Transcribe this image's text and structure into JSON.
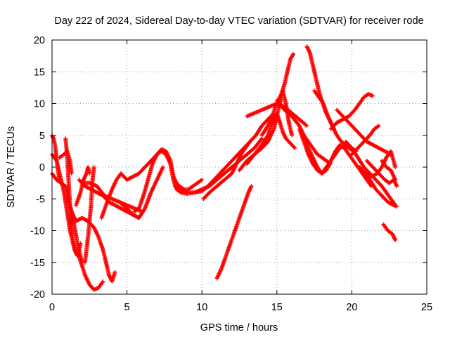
{
  "chart_data": {
    "type": "scatter",
    "title": "Day 222 of 2024, Sidereal Day-to-day VTEC variation (SDTVAR) for receiver rode",
    "xlabel": "GPS time / hours",
    "ylabel": "SDTVAR / TECUs",
    "xlim": [
      0,
      25
    ],
    "ylim": [
      -20,
      20
    ],
    "xticks": [
      0,
      5,
      10,
      15,
      20,
      25
    ],
    "yticks": [
      -20,
      -15,
      -10,
      -5,
      0,
      5,
      10,
      15,
      20
    ],
    "xtick_labels": [
      "0",
      "5",
      "10",
      "15",
      "20",
      "25"
    ],
    "ytick_labels": [
      "-20",
      "-15",
      "-10",
      "-5",
      "0",
      "5",
      "10",
      "15",
      "20"
    ],
    "grid": true,
    "legend": "none",
    "marker": "plus",
    "color": "#ff0000",
    "series": [
      {
        "x": [
          0.0,
          0.1,
          0.2,
          0.3,
          0.4,
          0.5
        ],
        "y": [
          5.0,
          4.5,
          3.5,
          1.5,
          -0.5,
          -2.0
        ]
      },
      {
        "x": [
          0.0,
          0.3,
          0.6,
          0.8,
          1.0,
          1.2,
          1.4,
          1.6,
          1.8,
          2.0,
          2.2,
          2.5,
          2.8,
          3.1,
          3.4
        ],
        "y": [
          2.0,
          1.0,
          -2.0,
          -4.0,
          -7.0,
          -10.0,
          -12.0,
          -13.5,
          -14.0,
          -15.5,
          -17.0,
          -18.5,
          -19.3,
          -19.0,
          -18.0
        ]
      },
      {
        "x": [
          0.0,
          0.3,
          0.6,
          0.9,
          1.1,
          1.4,
          1.7,
          2.0
        ],
        "y": [
          -1.0,
          -2.0,
          -2.5,
          -3.0,
          -5.0,
          -8.0,
          -12.0,
          -15.0
        ]
      },
      {
        "x": [
          0.5,
          0.8,
          1.0,
          1.2,
          1.3
        ],
        "y": [
          1.5,
          2.0,
          2.5,
          1.0,
          -1.0
        ]
      },
      {
        "x": [
          0.9,
          1.0,
          1.1,
          1.2,
          1.3,
          1.5,
          1.7,
          1.9
        ],
        "y": [
          4.5,
          2.0,
          -2.0,
          -6.0,
          -10.0,
          -13.0,
          -14.0,
          -12.0
        ]
      },
      {
        "x": [
          1.0,
          1.3,
          1.6,
          2.0,
          2.4,
          2.8,
          3.1,
          3.4,
          3.6,
          3.8,
          4.0,
          4.2
        ],
        "y": [
          -5.0,
          -7.0,
          -8.5,
          -8.0,
          -8.5,
          -9.5,
          -11.0,
          -13.0,
          -15.0,
          -17.0,
          -18.0,
          -16.5
        ]
      },
      {
        "x": [
          1.6,
          1.9,
          2.1,
          2.3,
          2.4,
          2.5
        ],
        "y": [
          -6.0,
          -4.0,
          -2.0,
          -1.0,
          0.0,
          -1.0
        ]
      },
      {
        "x": [
          2.2,
          2.4,
          2.6,
          2.7,
          2.8
        ],
        "y": [
          -15.0,
          -11.0,
          -6.0,
          -2.0,
          0.0
        ]
      },
      {
        "x": [
          2.0,
          2.5,
          3.0,
          3.5,
          4.0,
          4.5,
          5.0,
          5.5,
          6.0
        ],
        "y": [
          -2.5,
          -2.5,
          -3.0,
          -4.5,
          -5.0,
          -5.5,
          -6.0,
          -6.5,
          -7.0
        ]
      },
      {
        "x": [
          1.8,
          2.2,
          2.6,
          3.0,
          3.4,
          3.8,
          4.2,
          4.6,
          5.0,
          5.4,
          5.8
        ],
        "y": [
          -2.0,
          -3.0,
          -3.5,
          -4.0,
          -4.5,
          -5.5,
          -6.0,
          -6.5,
          -7.0,
          -7.5,
          -8.0
        ]
      },
      {
        "x": [
          3.3,
          3.6,
          4.0,
          4.3,
          4.6,
          5.0,
          5.4,
          5.8,
          6.2,
          6.6,
          7.0,
          7.3,
          7.6,
          7.9,
          8.1,
          8.3,
          8.5,
          8.8,
          9.1,
          9.4,
          9.7,
          10.0
        ],
        "y": [
          -8.0,
          -6.0,
          -3.5,
          -2.0,
          -1.0,
          -2.0,
          -1.5,
          -1.0,
          0.0,
          1.0,
          2.0,
          2.8,
          2.5,
          1.0,
          -1.5,
          -2.5,
          -3.0,
          -3.5,
          -3.5,
          -3.0,
          -2.5,
          -2.0
        ]
      },
      {
        "x": [
          5.5,
          5.8,
          6.1,
          6.4,
          6.7,
          7.0,
          7.3,
          7.6,
          7.9,
          8.1,
          8.3,
          8.6,
          9.0,
          9.5,
          10.0,
          10.5,
          11.0,
          11.5,
          12.0,
          12.5,
          13.0,
          13.5,
          14.0
        ],
        "y": [
          -7.0,
          -6.5,
          -4.5,
          -2.0,
          0.5,
          2.0,
          2.5,
          2.0,
          0.5,
          -2.0,
          -3.5,
          -4.0,
          -4.2,
          -4.0,
          -3.5,
          -3.0,
          -2.0,
          -1.0,
          0.0,
          1.0,
          2.0,
          3.0,
          4.5
        ]
      },
      {
        "x": [
          8.2,
          8.6,
          9.0,
          9.5,
          10.0,
          10.4,
          10.8,
          11.2,
          11.6,
          12.0,
          12.4,
          12.8,
          13.2,
          13.6,
          14.0,
          14.4,
          14.8
        ],
        "y": [
          -3.0,
          -3.5,
          -4.0,
          -4.0,
          -3.8,
          -3.0,
          -2.0,
          -1.0,
          0.0,
          1.0,
          2.0,
          3.0,
          4.0,
          5.0,
          6.5,
          7.5,
          8.5
        ]
      },
      {
        "x": [
          10.1,
          10.5,
          11.0,
          11.5,
          12.0,
          12.3,
          12.6,
          12.9,
          13.2
        ],
        "y": [
          -5.0,
          -4.0,
          -3.0,
          -2.0,
          -1.0,
          0.5,
          2.0,
          3.0,
          4.0
        ]
      },
      {
        "x": [
          11.0,
          11.3,
          11.6,
          11.9,
          12.2,
          12.5,
          12.8,
          13.1,
          13.3
        ],
        "y": [
          -17.5,
          -16.0,
          -14.0,
          -12.0,
          -10.0,
          -8.0,
          -6.0,
          -4.0,
          -3.0
        ]
      },
      {
        "x": [
          12.5,
          13.0,
          13.5,
          14.0,
          14.4,
          14.8,
          15.0,
          15.2,
          15.4,
          15.6,
          15.8,
          16.0
        ],
        "y": [
          -0.5,
          1.0,
          2.0,
          3.0,
          4.0,
          6.0,
          8.0,
          10.0,
          12.0,
          10.0,
          7.0,
          5.0
        ]
      },
      {
        "x": [
          13.0,
          13.5,
          14.0,
          14.4,
          14.7,
          15.0,
          15.2,
          15.4,
          15.6,
          15.8,
          16.0,
          16.2
        ],
        "y": [
          0.5,
          2.0,
          3.5,
          5.0,
          7.0,
          8.5,
          7.0,
          5.5,
          4.5,
          4.0,
          3.5,
          3.0
        ]
      },
      {
        "x": [
          14.0,
          14.4,
          14.7,
          14.9,
          15.1,
          15.3,
          15.5,
          15.7,
          15.9,
          16.1
        ],
        "y": [
          5.0,
          6.5,
          8.0,
          9.5,
          10.5,
          11.5,
          13.0,
          15.0,
          17.0,
          17.8
        ]
      },
      {
        "x": [
          13.0,
          13.5,
          14.0,
          14.5,
          15.0,
          15.5,
          16.0,
          16.5,
          17.0
        ],
        "y": [
          8.0,
          8.5,
          9.0,
          9.5,
          10.0,
          9.5,
          8.5,
          7.5,
          6.5
        ]
      },
      {
        "x": [
          15.0,
          15.5,
          16.0,
          16.5,
          16.8,
          17.1,
          17.4,
          17.7,
          18.0,
          18.3,
          18.6
        ],
        "y": [
          10.5,
          9.0,
          8.0,
          6.5,
          5.0,
          4.0,
          3.0,
          2.0,
          1.5,
          1.0,
          0.5
        ]
      },
      {
        "x": [
          16.5,
          16.8,
          17.1,
          17.4,
          17.7,
          18.0,
          18.3,
          18.6,
          18.9,
          19.2,
          19.5,
          19.8,
          20.1
        ],
        "y": [
          6.0,
          4.0,
          2.0,
          0.5,
          -0.5,
          -1.0,
          0.0,
          1.0,
          2.0,
          3.0,
          3.5,
          3.0,
          2.5
        ]
      },
      {
        "x": [
          17.0,
          17.2,
          17.4,
          17.6,
          17.8,
          18.0,
          18.2,
          18.4,
          18.6,
          18.8
        ],
        "y": [
          19.0,
          18.0,
          16.0,
          14.0,
          12.0,
          10.5,
          9.0,
          8.0,
          7.0,
          6.0
        ]
      },
      {
        "x": [
          17.5,
          17.8,
          18.1,
          18.4,
          18.7,
          19.0,
          19.3,
          19.6,
          20.0,
          20.3
        ],
        "y": [
          12.0,
          11.0,
          10.0,
          8.0,
          6.5,
          5.0,
          4.0,
          3.5,
          3.0,
          2.5
        ]
      },
      {
        "x": [
          16.8,
          17.1,
          17.4,
          17.7,
          18.0,
          18.3,
          18.6,
          18.9,
          19.2,
          19.5,
          19.8,
          20.1,
          20.4,
          20.7,
          21.0,
          21.3
        ],
        "y": [
          5.0,
          3.0,
          1.5,
          0.0,
          -1.0,
          -0.5,
          1.0,
          2.5,
          3.5,
          3.0,
          2.0,
          1.0,
          0.0,
          -1.0,
          -2.0,
          -3.0
        ]
      },
      {
        "x": [
          19.0,
          19.4,
          19.8,
          20.2,
          20.6,
          21.0,
          21.4,
          21.8,
          22.2,
          22.6
        ],
        "y": [
          9.0,
          8.0,
          7.0,
          6.0,
          5.0,
          4.0,
          3.5,
          3.0,
          2.5,
          2.0
        ]
      },
      {
        "x": [
          18.6,
          19.0,
          19.4,
          19.8,
          20.2,
          20.5,
          20.8,
          21.1,
          21.4
        ],
        "y": [
          6.0,
          7.0,
          7.5,
          8.0,
          9.0,
          10.0,
          11.0,
          11.5,
          11.2
        ]
      },
      {
        "x": [
          20.0,
          20.4,
          20.8,
          21.2,
          21.5,
          21.8
        ],
        "y": [
          2.0,
          3.0,
          4.0,
          5.0,
          6.0,
          6.5
        ]
      },
      {
        "x": [
          19.6,
          20.0,
          20.4,
          20.8,
          21.2,
          21.6,
          22.0,
          22.3,
          22.6,
          22.9
        ],
        "y": [
          4.0,
          3.0,
          1.5,
          0.0,
          -1.0,
          -2.0,
          -3.0,
          -4.0,
          -5.0,
          -6.0
        ]
      },
      {
        "x": [
          20.5,
          20.9,
          21.3,
          21.7,
          22.0,
          22.3,
          22.6,
          22.9
        ],
        "y": [
          0.0,
          -1.0,
          -1.5,
          -1.0,
          0.0,
          1.5,
          2.5,
          0.0
        ]
      },
      {
        "x": [
          21.0,
          21.4,
          21.8,
          22.2,
          22.5,
          22.8,
          23.0
        ],
        "y": [
          1.0,
          0.0,
          -1.0,
          -2.0,
          -2.5,
          -2.0,
          -3.0
        ]
      },
      {
        "x": [
          22.0,
          22.3,
          22.6,
          22.9
        ],
        "y": [
          1.0,
          0.0,
          -0.5,
          -2.0
        ]
      },
      {
        "x": [
          22.1,
          22.4,
          22.7,
          22.9
        ],
        "y": [
          -9.0,
          -10.0,
          -10.5,
          -11.5
        ]
      },
      {
        "x": [
          20.8,
          21.2,
          21.6,
          22.0,
          22.4,
          22.8,
          23.0
        ],
        "y": [
          -1.0,
          -2.0,
          -3.5,
          -4.5,
          -5.5,
          -6.0,
          -6.2
        ]
      },
      {
        "x": [
          4.5,
          5.0,
          5.4,
          5.8,
          6.2,
          6.6,
          7.0,
          7.4
        ],
        "y": [
          -5.5,
          -6.5,
          -7.5,
          -8.0,
          -6.5,
          -4.0,
          -2.0,
          0.0
        ]
      }
    ]
  }
}
